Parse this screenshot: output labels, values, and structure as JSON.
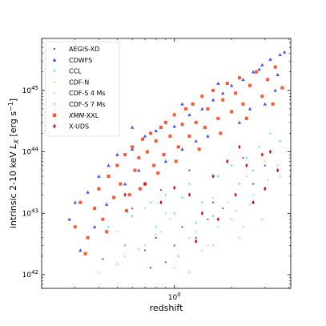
{
  "chart_data": {
    "type": "scatter",
    "title": "",
    "xlabel": "redshift",
    "ylabel": "intrinsic 2-10 keV L_X [erg s^-1]",
    "xscale": "log",
    "yscale": "log",
    "xlim": [
      0.2,
      4.1
    ],
    "ylim": [
      6e+41,
      7e+45
    ],
    "x_ticks": [
      {
        "value": 1,
        "label": "10^0"
      }
    ],
    "y_ticks": [
      {
        "value": 1e+42,
        "label": "10^42"
      },
      {
        "value": 1e+43,
        "label": "10^43"
      },
      {
        "value": 1e+44,
        "label": "10^44"
      },
      {
        "value": 1e+45,
        "label": "10^45"
      }
    ],
    "grid": false,
    "legend_position": "top-left",
    "series": [
      {
        "name": "AEGIS-XD",
        "marker": "dot",
        "color": "#8a2be2",
        "color_name": "purple",
        "points": [
          [
            0.42,
            1.8e+42
          ],
          [
            0.55,
            3e+42
          ],
          [
            0.7,
            2.5e+42
          ],
          [
            0.8,
            4e+42
          ],
          [
            0.9,
            1.6e+42
          ],
          [
            1.0,
            3e+42
          ],
          [
            1.1,
            6e+42
          ],
          [
            1.3,
            4e+42
          ],
          [
            1.5,
            8e+42
          ],
          [
            1.8,
            1.2e+43
          ],
          [
            2.1,
            2e+43
          ],
          [
            2.6,
            3e+43
          ],
          [
            0.6,
            1.2e+43
          ],
          [
            0.85,
            2.4e+43
          ],
          [
            1.2,
            5e+43
          ],
          [
            2.3,
            8e+43
          ],
          [
            0.75,
            1.3e+42
          ],
          [
            1.05,
            2e+42
          ],
          [
            1.6,
            1.5e+43
          ],
          [
            3.0,
            6e+43
          ]
        ]
      },
      {
        "name": "CDWFS",
        "marker": "triangle",
        "color": "#3f51ff",
        "color_name": "blue",
        "points": [
          [
            0.3,
            1.5e+43
          ],
          [
            0.35,
            2.2e+43
          ],
          [
            0.4,
            4e+43
          ],
          [
            0.45,
            6e+43
          ],
          [
            0.5,
            9e+43
          ],
          [
            0.6,
            1.1e+44
          ],
          [
            0.7,
            1.8e+44
          ],
          [
            0.8,
            2.2e+44
          ],
          [
            0.9,
            3e+44
          ],
          [
            1.0,
            2.6e+44
          ],
          [
            1.2,
            4e+44
          ],
          [
            1.4,
            5e+44
          ],
          [
            1.6,
            7e+44
          ],
          [
            1.8,
            9e+44
          ],
          [
            2.0,
            1.2e+45
          ],
          [
            2.3,
            1.5e+45
          ],
          [
            2.6,
            2e+45
          ],
          [
            2.9,
            2.6e+45
          ],
          [
            3.2,
            3.2e+45
          ],
          [
            3.6,
            3.8e+45
          ],
          [
            3.8,
            4.2e+45
          ],
          [
            0.32,
            2.5e+42
          ],
          [
            0.38,
            6e+42
          ],
          [
            0.55,
            3e+43
          ],
          [
            0.65,
            5e+43
          ],
          [
            1.1,
            1.1e+44
          ],
          [
            1.5,
            1.8e+44
          ],
          [
            2.2,
            3e+44
          ],
          [
            3.0,
            6e+44
          ],
          [
            3.4,
            1e+45
          ],
          [
            0.28,
            8e+42
          ],
          [
            0.44,
            1.4e+43
          ],
          [
            0.9,
            7e+43
          ],
          [
            1.3,
            1.5e+44
          ],
          [
            2.5,
            5e+44
          ],
          [
            3.5,
            1.8e+45
          ],
          [
            0.6,
            2.5e+44
          ],
          [
            1.1,
            6e+44
          ],
          [
            1.7,
            1.3e+45
          ],
          [
            2.8,
            2.2e+45
          ]
        ]
      },
      {
        "name": "CCL",
        "marker": "dot",
        "color": "#2ee8d8",
        "color_name": "cyan",
        "points": [
          [
            0.45,
            6e+42
          ],
          [
            0.6,
            9e+42
          ],
          [
            0.75,
            1.5e+43
          ],
          [
            0.9,
            2e+43
          ],
          [
            1.0,
            1e+43
          ],
          [
            1.2,
            3e+43
          ],
          [
            1.4,
            1.5e+43
          ],
          [
            1.7,
            4e+43
          ],
          [
            2.0,
            6e+43
          ],
          [
            2.4,
            8e+43
          ],
          [
            2.8,
            1.2e+44
          ],
          [
            3.2,
            2e+44
          ],
          [
            0.8,
            6e+42
          ],
          [
            1.1,
            1.8e+43
          ],
          [
            1.6,
            9e+42
          ],
          [
            2.2,
            3e+43
          ],
          [
            3.6,
            1.5e+44
          ],
          [
            0.55,
            3e+42
          ],
          [
            1.3,
            7e+42
          ],
          [
            2.6,
            5e+43
          ]
        ]
      },
      {
        "name": "CDF-N",
        "marker": "dot",
        "color": "#e8d87a",
        "color_name": "yellow",
        "points": [
          [
            0.5,
            5e+42
          ],
          [
            0.7,
            1.2e+43
          ],
          [
            0.95,
            8e+42
          ],
          [
            1.2,
            2e+43
          ],
          [
            1.5,
            3e+42
          ],
          [
            1.9,
            1.5e+43
          ],
          [
            2.4,
            4e+43
          ],
          [
            3.0,
            7e+43
          ]
        ]
      },
      {
        "name": "CDF-S 4 Ms",
        "marker": "dot",
        "color": "#7ffab5",
        "color_name": "green",
        "points": [
          [
            0.4,
            1.1e+42
          ],
          [
            0.55,
            2e+42
          ],
          [
            0.7,
            3e+42
          ],
          [
            0.85,
            5e+42
          ],
          [
            1.0,
            1.3e+42
          ],
          [
            1.2,
            4e+42
          ],
          [
            1.4,
            2.5e+42
          ],
          [
            1.7,
            6e+42
          ],
          [
            2.1,
            1.1e+43
          ],
          [
            2.6,
            2e+43
          ],
          [
            3.1,
            3.5e+43
          ],
          [
            3.5,
            6e+43
          ],
          [
            0.9,
            1e+43
          ],
          [
            1.6,
            1.8e+43
          ],
          [
            2.3,
            6e+42
          ]
        ]
      },
      {
        "name": "CDF-S 7 Ms",
        "marker": "x",
        "color": "#b8f0b0",
        "color_name": "light-green",
        "points": [
          [
            0.5,
            1.5e+42
          ],
          [
            0.65,
            2.6e+42
          ],
          [
            0.8,
            4.5e+42
          ],
          [
            1.05,
            2e+42
          ],
          [
            1.3,
            5e+42
          ],
          [
            1.6,
            3e+42
          ],
          [
            2.0,
            8e+42
          ],
          [
            2.5,
            1.4e+43
          ],
          [
            3.0,
            2.5e+43
          ],
          [
            3.6,
            4e+43
          ],
          [
            1.2,
            1.1e+42
          ],
          [
            2.2,
            4e+42
          ],
          [
            2.9,
            8e+42
          ]
        ]
      },
      {
        "name": "XMM-XXL",
        "marker": "square",
        "color": "#ff5533",
        "color_name": "orange-red",
        "points": [
          [
            0.3,
            6e+42
          ],
          [
            0.32,
            1.5e+43
          ],
          [
            0.35,
            4e+42
          ],
          [
            0.38,
            1.2e+43
          ],
          [
            0.4,
            2.5e+43
          ],
          [
            0.42,
            8e+42
          ],
          [
            0.45,
            4e+43
          ],
          [
            0.48,
            1.8e+43
          ],
          [
            0.5,
            6e+43
          ],
          [
            0.52,
            3e+43
          ],
          [
            0.55,
            9e+43
          ],
          [
            0.58,
            2e+43
          ],
          [
            0.6,
            1.2e+44
          ],
          [
            0.62,
            5e+43
          ],
          [
            0.65,
            8e+43
          ],
          [
            0.68,
            1.6e+44
          ],
          [
            0.7,
            3e+43
          ],
          [
            0.72,
            1e+44
          ],
          [
            0.75,
            2e+44
          ],
          [
            0.78,
            6e+43
          ],
          [
            0.8,
            1.5e+44
          ],
          [
            0.85,
            2.5e+44
          ],
          [
            0.88,
            9e+43
          ],
          [
            0.9,
            3e+44
          ],
          [
            0.95,
            1.8e+44
          ],
          [
            1.0,
            4e+44
          ],
          [
            1.05,
            1.2e+44
          ],
          [
            1.1,
            2.8e+44
          ],
          [
            1.15,
            5e+44
          ],
          [
            1.2,
            1.8e+44
          ],
          [
            1.25,
            6e+44
          ],
          [
            1.3,
            3e+44
          ],
          [
            1.4,
            8e+44
          ],
          [
            1.45,
            2.5e+44
          ],
          [
            1.5,
            5e+44
          ],
          [
            1.6,
            1e+45
          ],
          [
            1.7,
            3.5e+44
          ],
          [
            1.8,
            7e+44
          ],
          [
            1.9,
            1.3e+45
          ],
          [
            2.0,
            4.5e+44
          ],
          [
            2.1,
            9e+44
          ],
          [
            2.2,
            1.6e+45
          ],
          [
            2.3,
            6e+44
          ],
          [
            2.5,
            1.2e+45
          ],
          [
            2.7,
            2e+45
          ],
          [
            2.9,
            8e+44
          ],
          [
            3.1,
            1.5e+45
          ],
          [
            3.4,
            2.4e+45
          ],
          [
            3.7,
            1.1e+45
          ],
          [
            0.34,
            2.2e+42
          ],
          [
            0.44,
            5e+42
          ],
          [
            0.56,
            1.1e+43
          ],
          [
            0.66,
            2.5e+43
          ],
          [
            0.82,
            4.5e+43
          ],
          [
            1.02,
            7e+43
          ],
          [
            1.35,
            1.1e+44
          ],
          [
            1.75,
            2e+44
          ],
          [
            2.4,
            3.5e+44
          ],
          [
            3.3,
            6e+44
          ]
        ]
      },
      {
        "name": "X-UDS",
        "marker": "diamond",
        "color": "#dd0011",
        "color_name": "red",
        "points": [
          [
            0.55,
            2e+43
          ],
          [
            0.7,
            3e+43
          ],
          [
            0.85,
            1.5e+43
          ],
          [
            1.0,
            2.6e+43
          ],
          [
            1.2,
            2e+43
          ],
          [
            1.4,
            1e+43
          ],
          [
            1.6,
            4e+43
          ],
          [
            1.9,
            7e+43
          ],
          [
            2.1,
            2e+43
          ],
          [
            2.4,
            6e+43
          ],
          [
            2.6,
            1.5e+43
          ],
          [
            2.9,
            9e+43
          ],
          [
            3.2,
            1e+44
          ],
          [
            3.5,
            5e+43
          ],
          [
            1.3,
            3.5e+42
          ],
          [
            1.7,
            8e+42
          ],
          [
            2.2,
            1.2e+44
          ],
          [
            3.0,
            2.5e+43
          ]
        ]
      }
    ]
  }
}
